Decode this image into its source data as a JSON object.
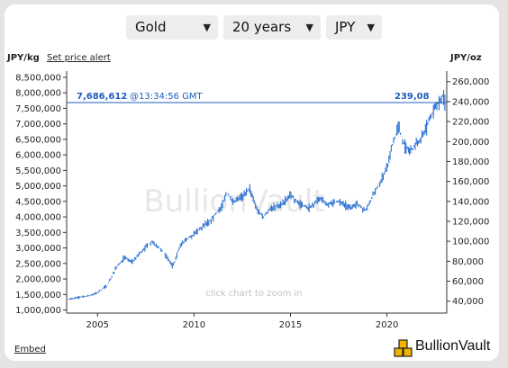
{
  "controls": {
    "metal": "Gold",
    "period": "20 years",
    "currency": "JPY"
  },
  "header": {
    "left_unit": "JPY/kg",
    "set_alert": "Set price alert",
    "right_unit": "JPY/oz"
  },
  "price_line": {
    "price_kg": "7,686,612",
    "time": "@13:34:56 GMT",
    "price_oz": "239,08"
  },
  "watermark": "BullionVault",
  "zoom_hint": "click chart to zoom in",
  "footer": {
    "embed": "Embed",
    "brand": "BullionVault"
  },
  "colors": {
    "series": "#2a6fd0",
    "price_line": "#1f5fbf",
    "watermark": "#e7e7e7"
  },
  "chart_data": {
    "type": "line",
    "style": "ohlc",
    "title": "",
    "xlabel": "",
    "ylabel_left": "JPY/kg",
    "ylabel_right": "JPY/oz",
    "xlim": [
      2003.4,
      2023.1
    ],
    "ylim_left": [
      900000,
      8700000
    ],
    "ylim_right": [
      27992,
      270595
    ],
    "x_ticks": [
      2005,
      2010,
      2015,
      2020
    ],
    "x_tick_labels": [
      "2005",
      "2010",
      "2015",
      "2020"
    ],
    "y_left_ticks": [
      1000000,
      1500000,
      2000000,
      2500000,
      3000000,
      3500000,
      4000000,
      4500000,
      5000000,
      5500000,
      6000000,
      6500000,
      7000000,
      7500000,
      8000000,
      8500000
    ],
    "y_left_tick_labels": [
      "1,000,000",
      "1,500,000",
      "2,000,000",
      "2,500,000",
      "3,000,000",
      "3,500,000",
      "4,000,000",
      "4,500,000",
      "5,000,000",
      "5,500,000",
      "6,000,000",
      "6,500,000",
      "7,000,000",
      "7,500,000",
      "8,000,000",
      "8,500,000"
    ],
    "y_right_ticks": [
      40000,
      60000,
      80000,
      100000,
      120000,
      140000,
      160000,
      180000,
      200000,
      220000,
      240000,
      260000
    ],
    "y_right_tick_labels": [
      "40,000",
      "60,000",
      "80,000",
      "100,000",
      "120,000",
      "140,000",
      "160,000",
      "180,000",
      "200,000",
      "220,000",
      "240,000",
      "260,000"
    ],
    "current_price_kg": 7686612,
    "grid": false,
    "series": [
      {
        "x": [
          2003.5,
          2004.0,
          2004.5,
          2005.0,
          2005.5,
          2006.0,
          2006.4,
          2006.8,
          2007.3,
          2007.8,
          2008.2,
          2008.6,
          2008.9,
          2009.3,
          2009.7,
          2010.0,
          2010.5,
          2011.0,
          2011.4,
          2011.7,
          2012.0,
          2012.5,
          2012.9,
          2013.3,
          2013.6,
          2014.0,
          2014.5,
          2015.0,
          2015.5,
          2016.0,
          2016.5,
          2017.0,
          2017.5,
          2018.0,
          2018.5,
          2018.9,
          2019.3,
          2019.7,
          2020.0,
          2020.3,
          2020.6,
          2020.9,
          2021.2,
          2021.6,
          2022.0,
          2022.3,
          2022.6,
          2022.9,
          2023.0
        ],
        "y": [
          1350000,
          1400000,
          1450000,
          1550000,
          1800000,
          2400000,
          2700000,
          2550000,
          2900000,
          3200000,
          3000000,
          2700000,
          2400000,
          3100000,
          3300000,
          3450000,
          3700000,
          4000000,
          4300000,
          4800000,
          4500000,
          4650000,
          4900000,
          4200000,
          4000000,
          4300000,
          4400000,
          4700000,
          4400000,
          4300000,
          4600000,
          4400000,
          4500000,
          4300000,
          4400000,
          4200000,
          4700000,
          5200000,
          5600000,
          6400000,
          6900000,
          6300000,
          6100000,
          6400000,
          6800000,
          7300000,
          7600000,
          7900000,
          7700000
        ]
      }
    ]
  }
}
